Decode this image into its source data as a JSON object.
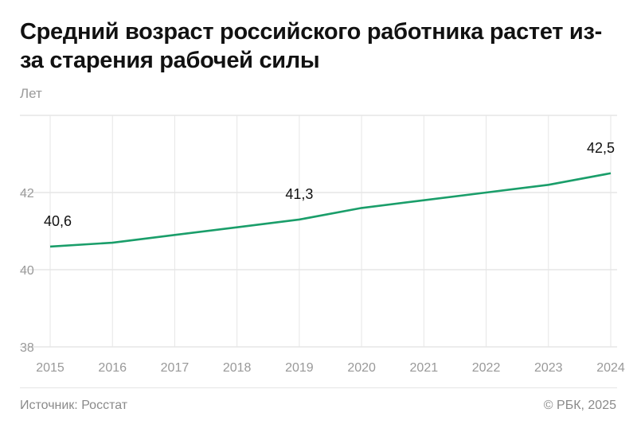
{
  "chart_data": {
    "type": "line",
    "title": "Средний возраст российского работника растет из-за старения рабочей силы",
    "ylabel": "Лет",
    "xlabel": "",
    "x": [
      "2015",
      "2016",
      "2017",
      "2018",
      "2019",
      "2020",
      "2021",
      "2022",
      "2023",
      "2024"
    ],
    "series": [
      {
        "values": [
          40.6,
          40.7,
          40.9,
          41.1,
          41.3,
          41.6,
          41.8,
          42.0,
          42.2,
          42.5
        ],
        "color": "#1a9e6a"
      }
    ],
    "data_labels": [
      {
        "x": "2015",
        "text": "40,6"
      },
      {
        "x": "2019",
        "text": "41,3"
      },
      {
        "x": "2024",
        "text": "42,5"
      }
    ],
    "yticks": [
      "38",
      "40",
      "42"
    ],
    "ylim": [
      38,
      44
    ],
    "grid": true
  },
  "footer": {
    "source": "Источник: Росстат",
    "copyright": "© РБК, 2025"
  }
}
